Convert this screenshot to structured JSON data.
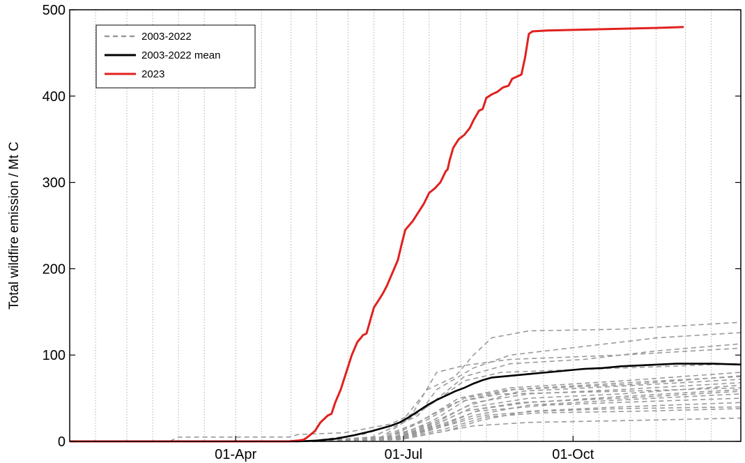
{
  "chart_data": {
    "type": "line",
    "title": "",
    "xlabel": "",
    "ylabel": "Total wildfire emission / Mt C",
    "x_unit": "day of year",
    "xlim": [
      1,
      365
    ],
    "ylim": [
      0,
      500
    ],
    "yticks": [
      0,
      100,
      200,
      300,
      400,
      500
    ],
    "xticks": [
      {
        "label": "01-Apr",
        "day": 91
      },
      {
        "label": "01-Jul",
        "day": 182
      },
      {
        "label": "01-Oct",
        "day": 274
      }
    ],
    "grid": "vertical dotted, every half month",
    "legend_position": "top-left",
    "legend": [
      {
        "label": "2003-2022",
        "color": "#999999",
        "style": "dashed"
      },
      {
        "label": "2003-2022 mean",
        "color": "#000000",
        "style": "solid"
      },
      {
        "label": "2023",
        "color": "#e0201e",
        "style": "solid"
      }
    ],
    "series": [
      {
        "name": "2023",
        "color": "#e0201e",
        "style": "solid",
        "points": [
          [
            1,
            0
          ],
          [
            120,
            0
          ],
          [
            125,
            1
          ],
          [
            128,
            2
          ],
          [
            130,
            5
          ],
          [
            134,
            12
          ],
          [
            137,
            22
          ],
          [
            141,
            30
          ],
          [
            143,
            32
          ],
          [
            145,
            45
          ],
          [
            148,
            60
          ],
          [
            151,
            80
          ],
          [
            154,
            100
          ],
          [
            157,
            115
          ],
          [
            159,
            120
          ],
          [
            160,
            123
          ],
          [
            162,
            125
          ],
          [
            164,
            140
          ],
          [
            166,
            155
          ],
          [
            169,
            165
          ],
          [
            171,
            172
          ],
          [
            173,
            180
          ],
          [
            175,
            190
          ],
          [
            177,
            200
          ],
          [
            179,
            210
          ],
          [
            181,
            228
          ],
          [
            183,
            245
          ],
          [
            185,
            250
          ],
          [
            187,
            255
          ],
          [
            190,
            265
          ],
          [
            193,
            275
          ],
          [
            196,
            288
          ],
          [
            199,
            293
          ],
          [
            202,
            300
          ],
          [
            205,
            313
          ],
          [
            206,
            315
          ],
          [
            207,
            325
          ],
          [
            209,
            340
          ],
          [
            212,
            350
          ],
          [
            215,
            355
          ],
          [
            218,
            363
          ],
          [
            220,
            372
          ],
          [
            223,
            383
          ],
          [
            225,
            385
          ],
          [
            227,
            398
          ],
          [
            230,
            402
          ],
          [
            233,
            405
          ],
          [
            236,
            410
          ],
          [
            239,
            412
          ],
          [
            241,
            420
          ],
          [
            243,
            422
          ],
          [
            246,
            425
          ],
          [
            248,
            445
          ],
          [
            250,
            472
          ],
          [
            252,
            475
          ],
          [
            260,
            476
          ],
          [
            280,
            477
          ],
          [
            300,
            478
          ],
          [
            320,
            479
          ],
          [
            334,
            480
          ]
        ]
      },
      {
        "name": "2003-2022 mean",
        "color": "#000000",
        "style": "solid",
        "points": [
          [
            1,
            0
          ],
          [
            125,
            0
          ],
          [
            135,
            1
          ],
          [
            145,
            3
          ],
          [
            155,
            7
          ],
          [
            165,
            12
          ],
          [
            175,
            18
          ],
          [
            180,
            22
          ],
          [
            185,
            28
          ],
          [
            190,
            35
          ],
          [
            195,
            42
          ],
          [
            200,
            48
          ],
          [
            205,
            53
          ],
          [
            210,
            58
          ],
          [
            215,
            62
          ],
          [
            220,
            67
          ],
          [
            225,
            71
          ],
          [
            230,
            74
          ],
          [
            240,
            76
          ],
          [
            250,
            78
          ],
          [
            260,
            80
          ],
          [
            270,
            82
          ],
          [
            280,
            84
          ],
          [
            290,
            85
          ],
          [
            300,
            87
          ],
          [
            310,
            88
          ],
          [
            320,
            89
          ],
          [
            330,
            90
          ],
          [
            340,
            90
          ],
          [
            350,
            90
          ],
          [
            365,
            89
          ]
        ]
      },
      {
        "name": "2003-2022",
        "color": "#999999",
        "style": "dashed",
        "lines": [
          [
            [
              1,
              0
            ],
            [
              55,
              0
            ],
            [
              60,
              5
            ],
            [
              120,
              5
            ],
            [
              125,
              8
            ],
            [
              150,
              10
            ],
            [
              175,
              20
            ],
            [
              195,
              40
            ],
            [
              215,
              70
            ],
            [
              235,
              80
            ],
            [
              300,
              85
            ],
            [
              365,
              90
            ]
          ],
          [
            [
              1,
              0
            ],
            [
              130,
              0
            ],
            [
              160,
              8
            ],
            [
              185,
              25
            ],
            [
              200,
              80
            ],
            [
              215,
              88
            ],
            [
              240,
              95
            ],
            [
              300,
              100
            ],
            [
              365,
              108
            ]
          ],
          [
            [
              1,
              0
            ],
            [
              130,
              0
            ],
            [
              165,
              5
            ],
            [
              180,
              20
            ],
            [
              195,
              60
            ],
            [
              210,
              75
            ],
            [
              220,
              100
            ],
            [
              230,
              120
            ],
            [
              250,
              128
            ],
            [
              300,
              130
            ],
            [
              365,
              138
            ]
          ],
          [
            [
              1,
              0
            ],
            [
              130,
              0
            ],
            [
              165,
              5
            ],
            [
              190,
              30
            ],
            [
              200,
              60
            ],
            [
              220,
              85
            ],
            [
              240,
              100
            ],
            [
              280,
              110
            ],
            [
              320,
              120
            ],
            [
              365,
              126
            ]
          ],
          [
            [
              1,
              0
            ],
            [
              130,
              0
            ],
            [
              170,
              5
            ],
            [
              195,
              40
            ],
            [
              215,
              75
            ],
            [
              240,
              90
            ],
            [
              280,
              95
            ],
            [
              320,
              105
            ],
            [
              365,
              113
            ]
          ],
          [
            [
              1,
              0
            ],
            [
              130,
              0
            ],
            [
              170,
              3
            ],
            [
              195,
              25
            ],
            [
              215,
              50
            ],
            [
              240,
              60
            ],
            [
              280,
              65
            ],
            [
              320,
              70
            ],
            [
              365,
              75
            ]
          ],
          [
            [
              1,
              0
            ],
            [
              135,
              0
            ],
            [
              175,
              3
            ],
            [
              200,
              20
            ],
            [
              220,
              40
            ],
            [
              250,
              50
            ],
            [
              300,
              55
            ],
            [
              365,
              65
            ]
          ],
          [
            [
              1,
              0
            ],
            [
              135,
              0
            ],
            [
              175,
              3
            ],
            [
              200,
              15
            ],
            [
              220,
              30
            ],
            [
              250,
              42
            ],
            [
              300,
              48
            ],
            [
              365,
              55
            ]
          ],
          [
            [
              1,
              0
            ],
            [
              135,
              0
            ],
            [
              180,
              2
            ],
            [
              205,
              12
            ],
            [
              225,
              25
            ],
            [
              250,
              35
            ],
            [
              300,
              40
            ],
            [
              365,
              45
            ]
          ],
          [
            [
              1,
              0
            ],
            [
              135,
              0
            ],
            [
              180,
              2
            ],
            [
              200,
              10
            ],
            [
              220,
              18
            ],
            [
              250,
              22
            ],
            [
              300,
              24
            ],
            [
              365,
              27
            ]
          ],
          [
            [
              1,
              0
            ],
            [
              135,
              0
            ],
            [
              175,
              2
            ],
            [
              195,
              15
            ],
            [
              215,
              35
            ],
            [
              245,
              45
            ],
            [
              300,
              50
            ],
            [
              365,
              58
            ]
          ],
          [
            [
              1,
              0
            ],
            [
              135,
              0
            ],
            [
              175,
              3
            ],
            [
              200,
              22
            ],
            [
              220,
              45
            ],
            [
              250,
              55
            ],
            [
              300,
              60
            ],
            [
              365,
              68
            ]
          ],
          [
            [
              1,
              0
            ],
            [
              135,
              0
            ],
            [
              180,
              4
            ],
            [
              205,
              20
            ],
            [
              225,
              38
            ],
            [
              250,
              45
            ],
            [
              300,
              52
            ],
            [
              365,
              60
            ]
          ],
          [
            [
              1,
              0
            ],
            [
              135,
              0
            ],
            [
              170,
              5
            ],
            [
              190,
              22
            ],
            [
              210,
              45
            ],
            [
              235,
              55
            ],
            [
              300,
              58
            ],
            [
              365,
              62
            ]
          ],
          [
            [
              1,
              0
            ],
            [
              135,
              0
            ],
            [
              180,
              3
            ],
            [
              205,
              18
            ],
            [
              225,
              30
            ],
            [
              255,
              35
            ],
            [
              300,
              38
            ],
            [
              365,
              40
            ]
          ],
          [
            [
              1,
              0
            ],
            [
              135,
              0
            ],
            [
              175,
              5
            ],
            [
              195,
              28
            ],
            [
              212,
              50
            ],
            [
              240,
              62
            ],
            [
              300,
              70
            ],
            [
              365,
              80
            ]
          ],
          [
            [
              1,
              0
            ],
            [
              135,
              0
            ],
            [
              178,
              4
            ],
            [
              200,
              18
            ],
            [
              222,
              35
            ],
            [
              260,
              42
            ],
            [
              310,
              46
            ],
            [
              365,
              50
            ]
          ],
          [
            [
              1,
              0
            ],
            [
              135,
              0
            ],
            [
              172,
              4
            ],
            [
              196,
              20
            ],
            [
              218,
              42
            ],
            [
              245,
              58
            ],
            [
              300,
              64
            ],
            [
              365,
              72
            ]
          ],
          [
            [
              1,
              0
            ],
            [
              135,
              0
            ],
            [
              180,
              3
            ],
            [
              204,
              14
            ],
            [
              226,
              28
            ],
            [
              256,
              33
            ],
            [
              310,
              35
            ],
            [
              365,
              38
            ]
          ],
          [
            [
              1,
              0
            ],
            [
              135,
              0
            ],
            [
              176,
              4
            ],
            [
              198,
              24
            ],
            [
              216,
              48
            ],
            [
              242,
              60
            ],
            [
              305,
              66
            ],
            [
              365,
              76
            ]
          ]
        ]
      }
    ]
  }
}
